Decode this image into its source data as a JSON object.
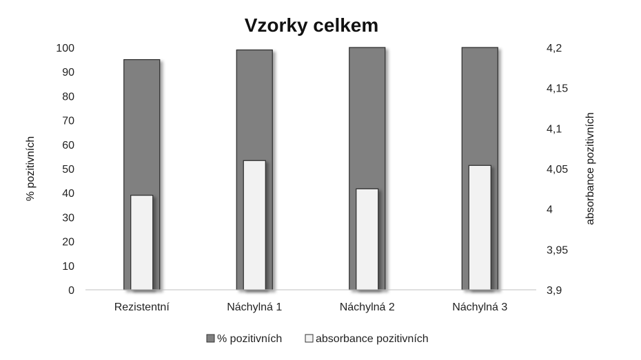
{
  "chart_data": {
    "type": "bar",
    "title": "Vzorky celkem",
    "categories": [
      "Rezistentní",
      "Náchylná 1",
      "Náchylná 2",
      "Náchylná 3"
    ],
    "series": [
      {
        "name": "% pozitivních",
        "axis": "left",
        "color": "#808080",
        "values": [
          95,
          99,
          100,
          100
        ]
      },
      {
        "name": "absorbance pozitivních",
        "axis": "right",
        "color": "#f2f2f2",
        "values": [
          4.017,
          4.06,
          4.025,
          4.054
        ]
      }
    ],
    "y_left": {
      "label": "% pozitivních",
      "lim": [
        0,
        100
      ],
      "ticks": [
        "0",
        "10",
        "20",
        "30",
        "40",
        "50",
        "60",
        "70",
        "80",
        "90",
        "100"
      ]
    },
    "y_right": {
      "label": "absorbance pozitivních",
      "lim": [
        3.9,
        4.2
      ],
      "ticks": [
        "3,9",
        "3,95",
        "4",
        "4,05",
        "4,1",
        "4,15",
        "4,2"
      ]
    },
    "grid": false,
    "legend": "bottom"
  }
}
